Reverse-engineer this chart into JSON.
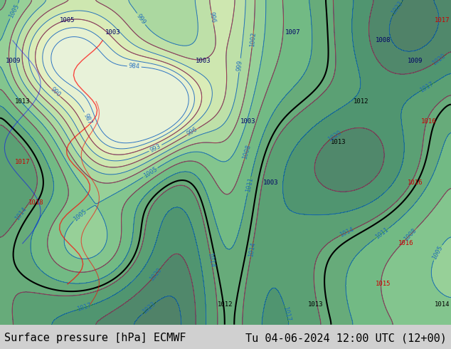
{
  "title_left": "Surface pressure [hPa] ECMWF",
  "title_right": "Tu 04-06-2024 12:00 UTC (12+00)",
  "background_color": "#e8f5e9",
  "map_bg_colors": {
    "land_green": "#c8e6c9",
    "land_light": "#dcedc8",
    "water": "#b3e5fc",
    "mountain": "#a5d6a7"
  },
  "contour_color_blue": "#1565c0",
  "contour_color_red": "#c62828",
  "contour_color_black": "#000000",
  "label_color": "#000000",
  "bottom_text_color": "#000000",
  "font_size_bottom": 11,
  "font_size_labels": 7,
  "figsize": [
    6.34,
    4.9
  ],
  "dpi": 100
}
